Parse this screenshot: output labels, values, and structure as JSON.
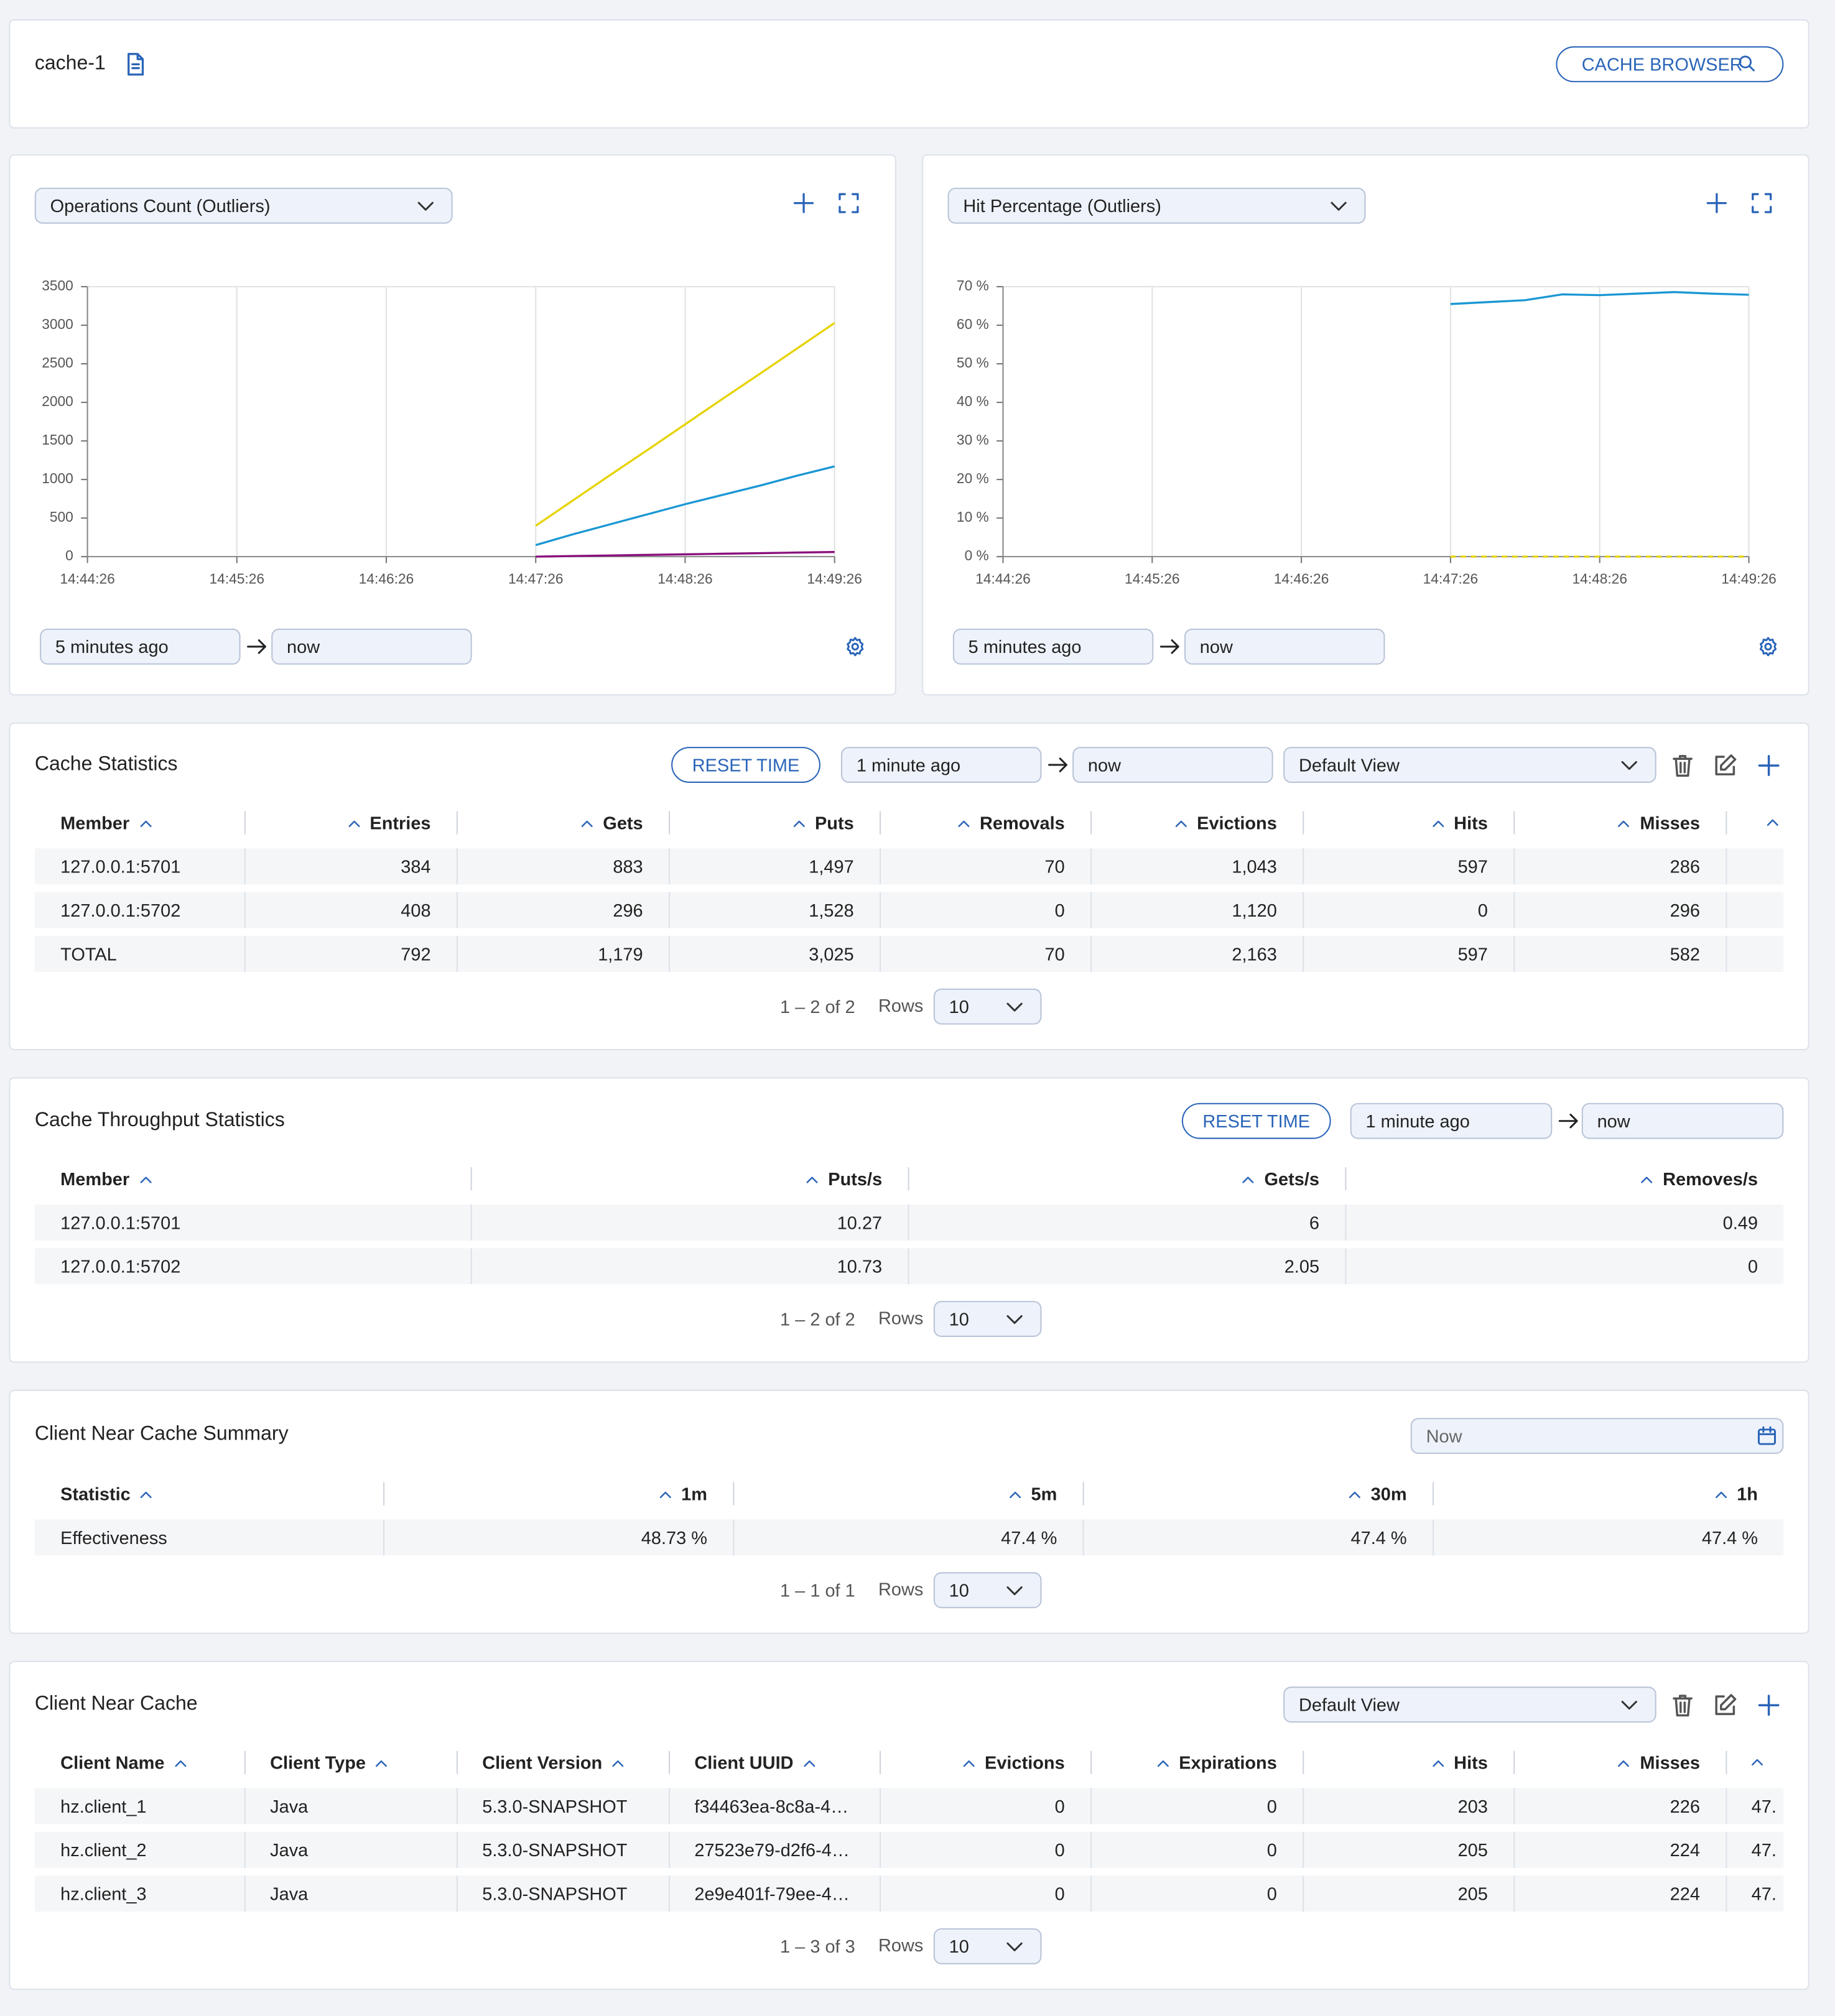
{
  "header": {
    "title": "cache-1",
    "button": "CACHE BROWSER"
  },
  "chart_data": [
    {
      "type": "line",
      "title": "Operations Count (Outliers)",
      "time_from": "5 minutes ago",
      "time_to": "now",
      "x": [
        "14:47:26",
        "14:47:41",
        "14:47:56",
        "14:48:11",
        "14:48:26",
        "14:48:41",
        "14:48:56",
        "14:49:11",
        "14:49:26"
      ],
      "series": [
        {
          "color": "#e6d300",
          "values": [
            400,
            730,
            1060,
            1385,
            1715,
            2045,
            2370,
            2700,
            3030
          ]
        },
        {
          "color": "#1a97d4",
          "values": [
            150,
            290,
            420,
            550,
            680,
            800,
            920,
            1050,
            1170
          ]
        },
        {
          "color": "#8a0f7c",
          "values": [
            0,
            8,
            15,
            23,
            30,
            38,
            45,
            53,
            60
          ]
        }
      ],
      "xlim": [
        "14:44:26",
        "14:49:26"
      ],
      "xticks": [
        "14:44:26",
        "14:45:26",
        "14:46:26",
        "14:47:26",
        "14:48:26",
        "14:49:26"
      ],
      "ylim": [
        0,
        3500
      ],
      "yticks": [
        0,
        500,
        1000,
        1500,
        2000,
        2500,
        3000,
        3500
      ],
      "grid": "x"
    },
    {
      "type": "line",
      "title": "Hit Percentage (Outliers)",
      "time_from": "5 minutes ago",
      "time_to": "now",
      "x": [
        "14:47:26",
        "14:47:41",
        "14:47:56",
        "14:48:11",
        "14:48:26",
        "14:48:41",
        "14:48:56",
        "14:49:11",
        "14:49:26"
      ],
      "series": [
        {
          "color": "#1a97d4",
          "values": [
            65.5,
            66,
            66.5,
            68,
            67.8,
            68.2,
            68.6,
            68.2,
            67.9
          ]
        },
        {
          "color": "#e6d300",
          "dashed": true,
          "values": [
            0,
            0,
            0,
            0,
            0,
            0,
            0,
            0,
            0
          ]
        }
      ],
      "xlim": [
        "14:44:26",
        "14:49:26"
      ],
      "xticks": [
        "14:44:26",
        "14:45:26",
        "14:46:26",
        "14:47:26",
        "14:48:26",
        "14:49:26"
      ],
      "ylim": [
        0,
        70
      ],
      "yticks": [
        {
          "value": 0,
          "label": "0 %"
        },
        {
          "value": 10,
          "label": "10 %"
        },
        {
          "value": 20,
          "label": "20 %"
        },
        {
          "value": 30,
          "label": "30 %"
        },
        {
          "value": 40,
          "label": "40 %"
        },
        {
          "value": 50,
          "label": "50 %"
        },
        {
          "value": 60,
          "label": "60 %"
        },
        {
          "value": 70,
          "label": "70 %"
        }
      ],
      "grid": "x"
    }
  ],
  "cache_statistics": {
    "title": "Cache Statistics",
    "reset": "RESET TIME",
    "from": "1 minute ago",
    "to": "now",
    "view": "Default View",
    "columns": [
      "Member",
      "Entries",
      "Gets",
      "Puts",
      "Removals",
      "Evictions",
      "Hits",
      "Misses"
    ],
    "rows": [
      [
        "127.0.0.1:5701",
        "384",
        "883",
        "1,497",
        "70",
        "1,043",
        "597",
        "286"
      ],
      [
        "127.0.0.1:5702",
        "408",
        "296",
        "1,528",
        "0",
        "1,120",
        "0",
        "296"
      ],
      [
        "TOTAL",
        "792",
        "1,179",
        "3,025",
        "70",
        "2,163",
        "597",
        "582"
      ]
    ],
    "pagination": "1 – 2 of 2",
    "rows_label": "Rows",
    "page_size": "10"
  },
  "throughput": {
    "title": "Cache Throughput Statistics",
    "reset": "RESET TIME",
    "from": "1 minute ago",
    "to": "now",
    "columns": [
      "Member",
      "Puts/s",
      "Gets/s",
      "Removes/s"
    ],
    "rows": [
      [
        "127.0.0.1:5701",
        "10.27",
        "6",
        "0.49"
      ],
      [
        "127.0.0.1:5702",
        "10.73",
        "2.05",
        "0"
      ]
    ],
    "pagination": "1 – 2 of 2",
    "rows_label": "Rows",
    "page_size": "10"
  },
  "near_cache_summary": {
    "title": "Client Near Cache Summary",
    "date": "Now",
    "columns": [
      "Statistic",
      "1m",
      "5m",
      "30m",
      "1h"
    ],
    "rows": [
      [
        "Effectiveness",
        "48.73 %",
        "47.4 %",
        "47.4 %",
        "47.4 %"
      ]
    ],
    "pagination": "1 – 1 of 1",
    "rows_label": "Rows",
    "page_size": "10"
  },
  "client_near_cache": {
    "title": "Client Near Cache",
    "view": "Default View",
    "columns": [
      "Client Name",
      "Client Type",
      "Client Version",
      "Client UUID",
      "Evictions",
      "Expirations",
      "Hits",
      "Misses"
    ],
    "rows": [
      [
        "hz.client_1",
        "Java",
        "5.3.0-SNAPSHOT",
        "f34463ea-8c8a-4…",
        "0",
        "0",
        "203",
        "226",
        "47."
      ],
      [
        "hz.client_2",
        "Java",
        "5.3.0-SNAPSHOT",
        "27523e79-d2f6-4…",
        "0",
        "0",
        "205",
        "224",
        "47."
      ],
      [
        "hz.client_3",
        "Java",
        "5.3.0-SNAPSHOT",
        "2e9e401f-79ee-4…",
        "0",
        "0",
        "205",
        "224",
        "47."
      ]
    ],
    "pagination": "1 – 3 of 3",
    "rows_label": "Rows",
    "page_size": "10"
  }
}
